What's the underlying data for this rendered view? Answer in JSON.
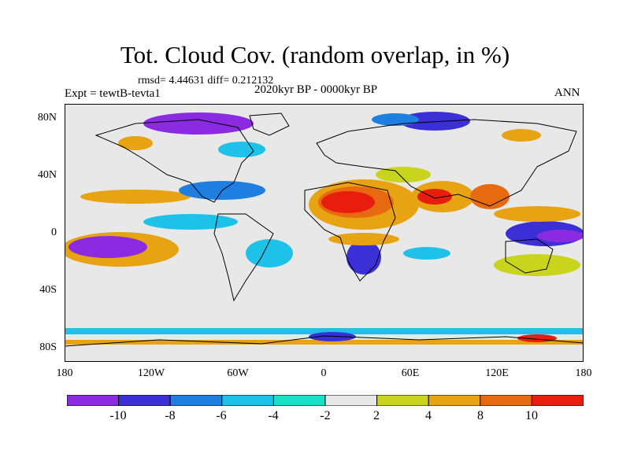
{
  "header": {
    "title": "Tot. Cloud Cov. (random overlap, in %)",
    "stats": "rmsd= 4.44631 diff= 0.212132",
    "experiment": "Expt = tewtB-tevta1",
    "period": "2020kyr BP - 0000kyr BP",
    "season": "ANN"
  },
  "map": {
    "projection": "cylindrical equidistant",
    "lat_range": [
      -90,
      90
    ],
    "lon_range": [
      -180,
      180
    ],
    "lat_ticks": [
      {
        "label": "80N",
        "value": 80
      },
      {
        "label": "40N",
        "value": 40
      },
      {
        "label": "0",
        "value": 0
      },
      {
        "label": "40S",
        "value": -40
      },
      {
        "label": "80S",
        "value": -80
      }
    ],
    "lon_ticks": [
      {
        "label": "180",
        "value": -180
      },
      {
        "label": "120W",
        "value": -120
      },
      {
        "label": "60W",
        "value": -60
      },
      {
        "label": "0",
        "value": 0
      },
      {
        "label": "60E",
        "value": 60
      },
      {
        "label": "120E",
        "value": 120
      },
      {
        "label": "180",
        "value": 180
      }
    ],
    "background_color": "#e8e8e8",
    "coastline_color": "#000000"
  },
  "colorbar": {
    "labels": [
      "-10",
      "-8",
      "-6",
      "-4",
      "-2",
      "2",
      "4",
      "8",
      "10"
    ],
    "colors": [
      "#8a2be2",
      "#3b2fd6",
      "#1e7fe0",
      "#1ec2e8",
      "#17e0c6",
      "#e8e8e8",
      "#c9d41c",
      "#e8a312",
      "#e86a10",
      "#e81d0d"
    ]
  }
}
